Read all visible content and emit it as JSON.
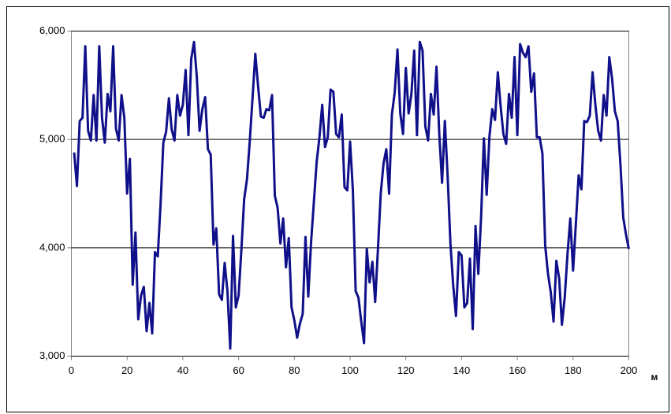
{
  "chart_data": {
    "type": "line",
    "x_unit": "м",
    "x": [
      1,
      2,
      3,
      4,
      5,
      6,
      7,
      8,
      9,
      10,
      11,
      12,
      13,
      14,
      15,
      16,
      17,
      18,
      19,
      20,
      21,
      22,
      23,
      24,
      25,
      26,
      27,
      28,
      29,
      30,
      31,
      32,
      33,
      34,
      35,
      36,
      37,
      38,
      39,
      40,
      41,
      42,
      43,
      44,
      45,
      46,
      47,
      48,
      49,
      50,
      51,
      52,
      53,
      54,
      55,
      56,
      57,
      58,
      59,
      60,
      61,
      62,
      63,
      64,
      65,
      66,
      67,
      68,
      69,
      70,
      71,
      72,
      73,
      74,
      75,
      76,
      77,
      78,
      79,
      80,
      81,
      82,
      83,
      84,
      85,
      86,
      87,
      88,
      89,
      90,
      91,
      92,
      93,
      94,
      95,
      96,
      97,
      98,
      99,
      100,
      101,
      102,
      103,
      104,
      105,
      106,
      107,
      108,
      109,
      110,
      111,
      112,
      113,
      114,
      115,
      116,
      117,
      118,
      119,
      120,
      121,
      122,
      123,
      124,
      125,
      126,
      127,
      128,
      129,
      130,
      131,
      132,
      133,
      134,
      135,
      136,
      137,
      138,
      139,
      140,
      141,
      142,
      143,
      144,
      145,
      146,
      147,
      148,
      149,
      150,
      151,
      152,
      153,
      154,
      155,
      156,
      157,
      158,
      159,
      160,
      161,
      162,
      163,
      164,
      165,
      166,
      167,
      168,
      169,
      170,
      171,
      172,
      173,
      174,
      175,
      176,
      177,
      178,
      179,
      180,
      181,
      182,
      183,
      184,
      185,
      186,
      187,
      188,
      189,
      190,
      191,
      192,
      193,
      194,
      195,
      196,
      197,
      198,
      199,
      200
    ],
    "values": [
      4880,
      4570,
      5170,
      5200,
      5860,
      5080,
      4990,
      5410,
      4990,
      5860,
      5200,
      4970,
      5420,
      5260,
      5860,
      5100,
      4990,
      5410,
      5200,
      4500,
      4820,
      3660,
      4140,
      3340,
      3560,
      3640,
      3230,
      3490,
      3210,
      3960,
      3920,
      4400,
      4970,
      5070,
      5380,
      5090,
      4990,
      5410,
      5220,
      5320,
      5640,
      5040,
      5740,
      5900,
      5580,
      5080,
      5280,
      5390,
      4910,
      4860,
      4030,
      4180,
      3570,
      3520,
      3860,
      3600,
      3070,
      4110,
      3450,
      3560,
      3980,
      4450,
      4630,
      4980,
      5380,
      5790,
      5490,
      5210,
      5200,
      5280,
      5270,
      5410,
      4480,
      4370,
      4040,
      4270,
      3820,
      4090,
      3450,
      3330,
      3170,
      3300,
      3390,
      4100,
      3550,
      4050,
      4420,
      4790,
      5020,
      5320,
      4930,
      5020,
      5460,
      5440,
      5050,
      5020,
      5230,
      4560,
      4530,
      4980,
      4530,
      3600,
      3540,
      3320,
      3120,
      3990,
      3680,
      3870,
      3500,
      3990,
      4500,
      4780,
      4910,
      4500,
      5230,
      5430,
      5830,
      5240,
      5050,
      5660,
      5240,
      5420,
      5820,
      5040,
      5900,
      5820,
      5120,
      4990,
      5420,
      5230,
      5670,
      5050,
      4600,
      5170,
      4660,
      4040,
      3650,
      3370,
      3960,
      3930,
      3450,
      3490,
      3900,
      3250,
      4200,
      3760,
      4280,
      5010,
      4490,
      5030,
      5280,
      5180,
      5620,
      5310,
      5050,
      4960,
      5420,
      5200,
      5760,
      5040,
      5880,
      5800,
      5760,
      5860,
      5440,
      5610,
      5020,
      5020,
      4870,
      4020,
      3760,
      3590,
      3320,
      3880,
      3720,
      3290,
      3540,
      3940,
      4270,
      3790,
      4220,
      4670,
      4540,
      5170,
      5160,
      5220,
      5620,
      5320,
      5080,
      4990,
      5410,
      5220,
      5760,
      5560,
      5260,
      5170,
      4770,
      4280,
      4120,
      3990
    ],
    "color": "#10108a",
    "xlim": [
      0,
      200
    ],
    "xticks": [
      0,
      20,
      40,
      60,
      80,
      100,
      120,
      140,
      160,
      180,
      200
    ],
    "ylim": [
      3000,
      6000
    ],
    "yticks": [
      {
        "value": 3000,
        "label": "3,000"
      },
      {
        "value": 4000,
        "label": "4,000"
      },
      {
        "value": 5000,
        "label": "5,000"
      },
      {
        "value": 6000,
        "label": "6,000"
      }
    ],
    "grid": true
  }
}
